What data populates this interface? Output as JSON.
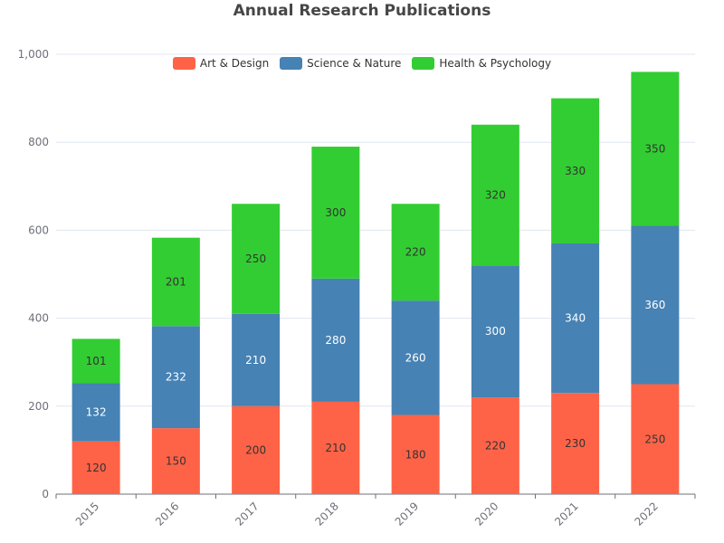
{
  "chart_data": {
    "type": "bar",
    "stacked": true,
    "title": "Annual Research Publications",
    "categories": [
      "2015",
      "2016",
      "2017",
      "2018",
      "2019",
      "2020",
      "2021",
      "2022"
    ],
    "series": [
      {
        "name": "Art & Design",
        "color": "#ff6347",
        "label_color": "#333333",
        "values": [
          120,
          150,
          200,
          210,
          180,
          220,
          230,
          250
        ]
      },
      {
        "name": "Science & Nature",
        "color": "#4682b4",
        "label_color": "#ffffff",
        "values": [
          132,
          232,
          210,
          280,
          260,
          300,
          340,
          360
        ]
      },
      {
        "name": "Health & Psychology",
        "color": "#32cd32",
        "label_color": "#333333",
        "values": [
          101,
          201,
          250,
          300,
          220,
          320,
          330,
          350
        ]
      }
    ],
    "ylim": [
      0,
      1000
    ],
    "yticks": [
      "0",
      "200",
      "400",
      "600",
      "800",
      "1,000"
    ],
    "ytick_values": [
      0,
      200,
      400,
      600,
      800,
      1000
    ],
    "grid": true,
    "legend_position": "top-center",
    "xtick_rotation": "rotated"
  }
}
